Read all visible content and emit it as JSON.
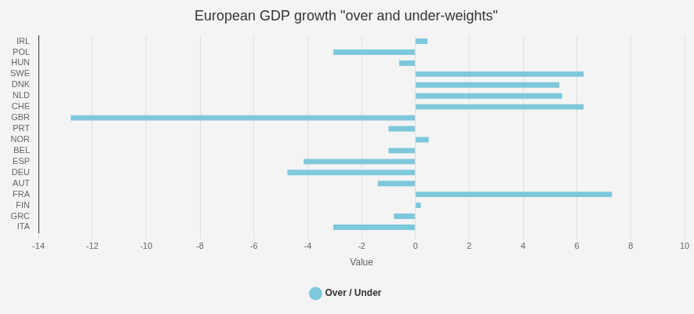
{
  "chart_data": {
    "type": "bar",
    "orientation": "horizontal",
    "title": "European GDP growth \"over and under-weights\"",
    "x_label": "Value",
    "categories": [
      "IRL",
      "POL",
      "HUN",
      "SWE",
      "DNK",
      "NLD",
      "CHE",
      "GBR",
      "PRT",
      "NOR",
      "BEL",
      "ESP",
      "DEU",
      "AUT",
      "FRA",
      "FIN",
      "GRC",
      "ITA"
    ],
    "series": [
      {
        "name": "Over / Under",
        "color": "#7ec8dc",
        "values": [
          0.45,
          -3.05,
          -0.6,
          6.25,
          5.35,
          5.45,
          6.25,
          -12.8,
          -1.0,
          0.5,
          -1.0,
          -4.15,
          -4.75,
          -1.4,
          7.3,
          0.2,
          -0.8,
          -3.05
        ]
      }
    ],
    "xlim": [
      -14,
      10
    ],
    "xticks": [
      -14,
      -12,
      -10,
      -8,
      -6,
      -4,
      -2,
      0,
      2,
      4,
      6,
      8,
      10
    ],
    "grid": true,
    "legend": "bottom"
  }
}
